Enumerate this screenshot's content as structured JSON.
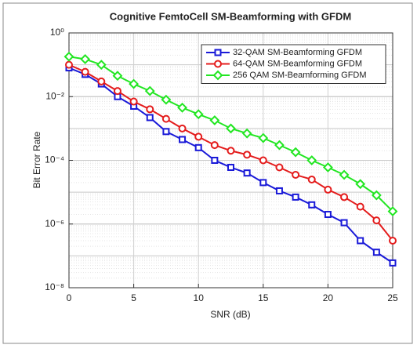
{
  "chart_data": {
    "type": "line",
    "title": "Cognitive FemtoCell SM-Beamforming with GFDM",
    "x_label": "SNR (dB)",
    "y_label": "Bit Error Rate",
    "x": [
      0,
      1.25,
      2.5,
      3.75,
      5,
      6.25,
      7.5,
      8.75,
      10,
      11.25,
      12.5,
      13.75,
      15,
      16.25,
      17.5,
      18.75,
      20,
      21.25,
      22.5,
      23.75,
      25
    ],
    "series": [
      {
        "name": "32-QAM SM-Beamforming GFDM",
        "color": "#1a1ad8",
        "marker": "square",
        "values": [
          0.08,
          0.05,
          0.025,
          0.01,
          0.005,
          0.0022,
          0.0008,
          0.00045,
          0.00025,
          0.0001,
          6e-05,
          4e-05,
          2e-05,
          1.1e-05,
          7e-06,
          4e-06,
          2e-06,
          1.1e-06,
          3e-07,
          1.3e-07,
          6e-08
        ]
      },
      {
        "name": "64-QAM SM-Beamforming GFDM",
        "color": "#e41c1c",
        "marker": "circle",
        "values": [
          0.1,
          0.06,
          0.03,
          0.015,
          0.007,
          0.004,
          0.002,
          0.001,
          0.00055,
          0.0003,
          0.0002,
          0.00015,
          0.0001,
          6e-05,
          3.5e-05,
          2.5e-05,
          1.2e-05,
          7e-06,
          3.5e-06,
          1.3e-06,
          3e-07
        ]
      },
      {
        "name": "256 QAM SM-Beamforming GFDM",
        "color": "#22e622",
        "marker": "diamond",
        "values": [
          0.18,
          0.15,
          0.1,
          0.045,
          0.025,
          0.015,
          0.008,
          0.0045,
          0.0028,
          0.0018,
          0.001,
          0.0007,
          0.0005,
          0.0003,
          0.00018,
          0.0001,
          6e-05,
          3.5e-05,
          1.8e-05,
          8e-06,
          2.5e-06
        ]
      }
    ],
    "xlim": [
      0,
      25
    ],
    "xticks": [
      0,
      5,
      10,
      15,
      20,
      25
    ],
    "ylim": [
      1e-08,
      1
    ],
    "y_scale": "log",
    "yticks": [
      {
        "value": 1,
        "label": "10⁰"
      },
      {
        "value": 0.01,
        "label": "10⁻²"
      },
      {
        "value": 0.0001,
        "label": "10⁻⁴"
      },
      {
        "value": 1e-06,
        "label": "10⁻⁶"
      },
      {
        "value": 1e-08,
        "label": "10⁻⁸"
      }
    ],
    "grid": true,
    "legend_position": "upper right"
  }
}
